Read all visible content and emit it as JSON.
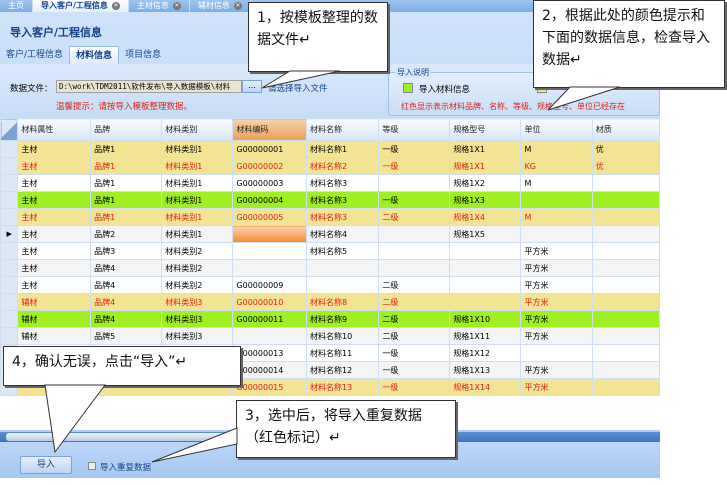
{
  "tabs": [
    {
      "label": "主页"
    },
    {
      "label": "导入客户/工程信息",
      "active": true
    },
    {
      "label": "主材信息"
    },
    {
      "label": "辅材信息"
    }
  ],
  "page_title": "导入客户/工程信息",
  "subtabs": [
    {
      "label": "客户/工程信息"
    },
    {
      "label": "材料信息",
      "active": true
    },
    {
      "label": "项目信息"
    }
  ],
  "file": {
    "label": "数据文件：",
    "value": "D:\\work\\TDM2011\\软件发布\\导入数据模板\\材料",
    "browse": "...",
    "hint": "请选择导入文件",
    "warning": "温馨提示：请按导入模板整理数据。"
  },
  "legend": {
    "title": "导入说明",
    "item1": "导入材料信息",
    "note": "红色显示表示材料品牌、名称、等级、规格型号、单位已经存在",
    "colors": {
      "new": "#9ef022",
      "dup": "#f2e492",
      "dup_text": "#e0201a"
    }
  },
  "table": {
    "columns": [
      "材料属性",
      "品牌",
      "材料类别",
      "材料编码",
      "材料名称",
      "等级",
      "规格型号",
      "单位",
      "材质"
    ],
    "rows": [
      {
        "style": "y",
        "cells": [
          "主材",
          "品牌1",
          "材料类别1",
          "G00000001",
          "材料名称1",
          "一级",
          "规格1X1",
          "M",
          "优"
        ]
      },
      {
        "style": "y r",
        "cells": [
          "主材",
          "品牌1",
          "材料类别1",
          "G00000002",
          "材料名称2",
          "一级",
          "规格1X1",
          "KG",
          "优"
        ]
      },
      {
        "style": "",
        "cells": [
          "主材",
          "品牌1",
          "材料类别1",
          "G00000003",
          "材料名称3",
          "",
          "规格1X2",
          "M",
          ""
        ]
      },
      {
        "style": "g",
        "cells": [
          "主材",
          "品牌1",
          "材料类别1",
          "G00000004",
          "材料名称3",
          "一级",
          "规格1X3",
          "",
          ""
        ]
      },
      {
        "style": "y r",
        "cells": [
          "主材",
          "品牌1",
          "材料类别1",
          "G00000005",
          "材料名称3",
          "二级",
          "规格1X4",
          "M",
          ""
        ]
      },
      {
        "style": "alt",
        "current": true,
        "cells": [
          "主材",
          "品牌2",
          "材料类别1",
          "",
          "材料名称4",
          "",
          "规格1X5",
          "",
          ""
        ]
      },
      {
        "style": "",
        "cells": [
          "主材",
          "品牌3",
          "材料类别2",
          "",
          "材料名称5",
          "",
          "",
          "平方米",
          ""
        ]
      },
      {
        "style": "alt",
        "cells": [
          "主材",
          "品牌4",
          "材料类别2",
          "",
          "",
          "",
          "",
          "平方米",
          ""
        ]
      },
      {
        "style": "",
        "cells": [
          "主材",
          "品牌4",
          "材料类别2",
          "G00000009",
          "",
          "二级",
          "",
          "平方米",
          ""
        ]
      },
      {
        "style": "y r",
        "cells": [
          "辅材",
          "品牌4",
          "材料类别3",
          "G00000010",
          "材料名称8",
          "二级",
          "",
          "平方米",
          ""
        ]
      },
      {
        "style": "g",
        "cells": [
          "辅材",
          "品牌4",
          "材料类别3",
          "G00000011",
          "材料名称9",
          "二级",
          "规格1X10",
          "平方米",
          ""
        ]
      },
      {
        "style": "alt",
        "cells": [
          "辅材",
          "品牌5",
          "材料类别3",
          "",
          "材料名称10",
          "二级",
          "规格1X11",
          "平方米",
          ""
        ]
      },
      {
        "style": "",
        "cells": [
          "",
          "",
          "",
          "G00000013",
          "材料名称11",
          "一级",
          "规格1X12",
          "",
          ""
        ]
      },
      {
        "style": "alt",
        "cells": [
          "",
          "",
          "",
          "G00000014",
          "材料名称12",
          "一级",
          "规格1X13",
          "平方米",
          ""
        ]
      },
      {
        "style": "y r",
        "cells": [
          "",
          "",
          "",
          "G00000015",
          "材料名称13",
          "一级",
          "规格1X14",
          "平方米",
          ""
        ]
      }
    ]
  },
  "footer": {
    "import": "导入",
    "dup_checkbox": "导入重复数据",
    "dup_checked": false
  },
  "callouts": {
    "c1": "1，按模板整理的数据文件↵",
    "c2": "2，根据此处的颜色提示和下面的数据信息，检查导入数据↵",
    "c3": "3，选中后，将导入重复数据（红色标记）↵",
    "c4": "4，确认无误，点击“导入”↵"
  }
}
